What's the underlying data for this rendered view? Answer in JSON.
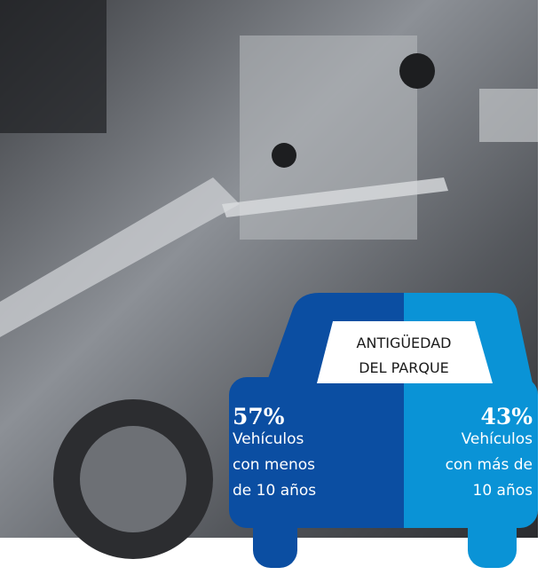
{
  "title": [
    "ANTIGÜEDAD",
    "DEL PARQUE"
  ],
  "items": [
    {
      "percent": "57%",
      "lines": [
        "Vehículos",
        "con menos",
        "de 10 años"
      ]
    },
    {
      "percent": "43%",
      "lines": [
        "Vehículos",
        "con más de",
        "10 años"
      ]
    }
  ]
}
